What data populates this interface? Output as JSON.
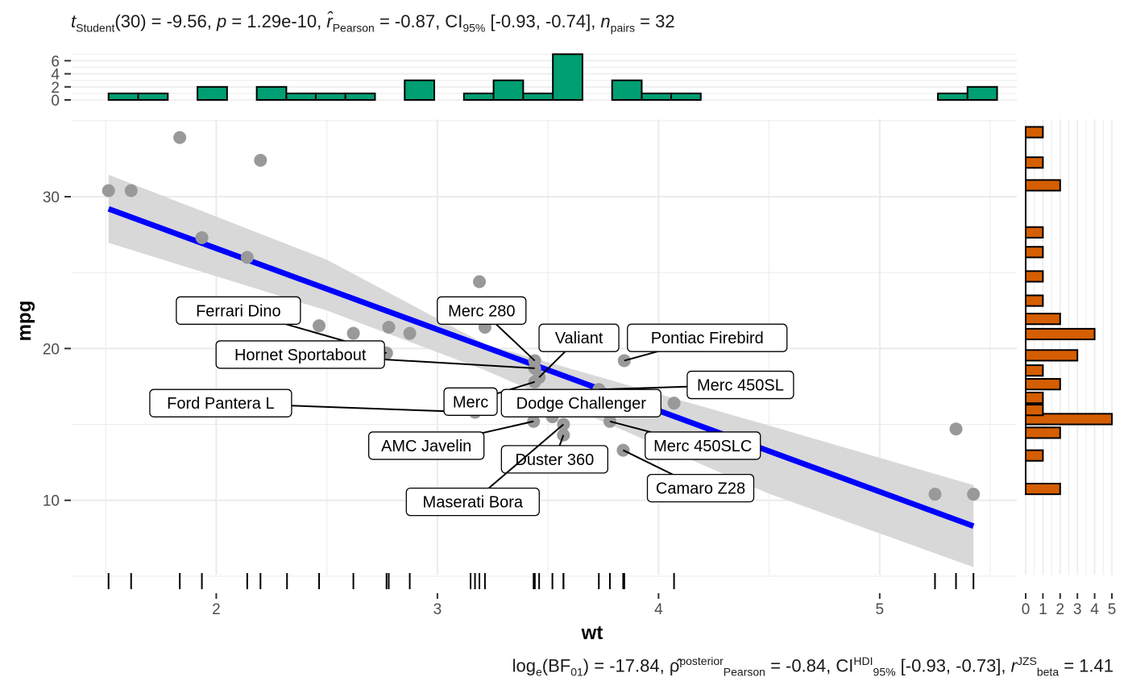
{
  "header_stats": {
    "t_sym": "t",
    "t_sub": "Student",
    "t_val": "(30) = -9.56, ",
    "p_sym": "p",
    "p_val": " = 1.29e-10, ",
    "r_sym": "r̂",
    "r_sub": "Pearson",
    "r_val": " = -0.87, CI",
    "ci_sub": "95%",
    "ci_val": " [-0.93, -0.74], ",
    "n_sym": "n",
    "n_sub": "pairs",
    "n_val": " = 32"
  },
  "footer_stats": {
    "log_text": "log",
    "log_sub": "e",
    "bf_text": "(BF",
    "bf_sub": "01",
    "bf_val": ") = -17.84, ",
    "rho_sym": "ρ̂",
    "rho_sup": "posterior",
    "rho_sub": "Pearson",
    "rho_val": " = -0.84, CI",
    "ci_sup": "HDI",
    "ci_sub": "95%",
    "ci_val": " [-0.93, -0.73], ",
    "rb_sym": "r",
    "rb_sup": "JZS",
    "rb_sub": "beta",
    "rb_val": " = 1.41"
  },
  "colors": {
    "points": "#999999",
    "fit_line": "#0000ff",
    "ci_band": "#d6d6d6",
    "top_hist": "#009e73",
    "right_hist": "#d55e00",
    "grid": "#ebebeb"
  },
  "chart_data": {
    "type": "scatter",
    "xlabel": "wt",
    "ylabel": "mpg",
    "xlim": [
      1.35,
      5.62
    ],
    "ylim": [
      5.1,
      35.1
    ],
    "x_ticks": [
      2,
      3,
      4,
      5
    ],
    "y_ticks": [
      10,
      20,
      30
    ],
    "grid": true,
    "points": [
      {
        "x": 2.62,
        "y": 21.0
      },
      {
        "x": 2.875,
        "y": 21.0
      },
      {
        "x": 2.32,
        "y": 22.8
      },
      {
        "x": 3.215,
        "y": 21.4
      },
      {
        "x": 3.44,
        "y": 18.7
      },
      {
        "x": 3.46,
        "y": 18.1
      },
      {
        "x": 3.57,
        "y": 14.3
      },
      {
        "x": 3.19,
        "y": 24.4
      },
      {
        "x": 3.15,
        "y": 22.8
      },
      {
        "x": 3.44,
        "y": 19.2
      },
      {
        "x": 3.44,
        "y": 17.8
      },
      {
        "x": 4.07,
        "y": 16.4
      },
      {
        "x": 3.73,
        "y": 17.3
      },
      {
        "x": 3.78,
        "y": 15.2
      },
      {
        "x": 5.25,
        "y": 10.4
      },
      {
        "x": 5.424,
        "y": 10.4
      },
      {
        "x": 5.345,
        "y": 14.7
      },
      {
        "x": 2.2,
        "y": 32.4
      },
      {
        "x": 1.615,
        "y": 30.4
      },
      {
        "x": 1.835,
        "y": 33.9
      },
      {
        "x": 2.465,
        "y": 21.5
      },
      {
        "x": 3.52,
        "y": 15.5
      },
      {
        "x": 3.435,
        "y": 15.2
      },
      {
        "x": 3.84,
        "y": 13.3
      },
      {
        "x": 3.845,
        "y": 19.2
      },
      {
        "x": 1.935,
        "y": 27.3
      },
      {
        "x": 2.14,
        "y": 26.0
      },
      {
        "x": 1.513,
        "y": 30.4
      },
      {
        "x": 3.17,
        "y": 15.8
      },
      {
        "x": 2.77,
        "y": 19.7
      },
      {
        "x": 3.57,
        "y": 15.0
      },
      {
        "x": 2.78,
        "y": 21.4
      }
    ],
    "fit": {
      "intercept": 37.285,
      "slope": -5.344,
      "x_range": [
        1.513,
        5.424
      ]
    },
    "ci_band": {
      "x": [
        1.513,
        2.5,
        3.217,
        4.5,
        5.424
      ],
      "lower": [
        26.96,
        22.5,
        18.56,
        10.43,
        5.6
      ],
      "upper": [
        31.45,
        25.85,
        20.28,
        14.92,
        11.0
      ]
    },
    "labels": [
      {
        "text": "Ferrari Dino",
        "x": 2.77,
        "y": 19.7,
        "lx": 2.1,
        "ly": 22.5
      },
      {
        "text": "Merc 280",
        "x": 3.44,
        "y": 19.2,
        "lx": 3.2,
        "ly": 22.5
      },
      {
        "text": "Valiant",
        "x": 3.46,
        "y": 18.1,
        "lx": 3.64,
        "ly": 20.7
      },
      {
        "text": "Pontiac Firebird",
        "x": 3.845,
        "y": 19.2,
        "lx": 4.22,
        "ly": 20.7
      },
      {
        "text": "Hornet Sportabout",
        "x": 3.44,
        "y": 18.7,
        "lx": 2.38,
        "ly": 19.6
      },
      {
        "text": "Merc 450SL",
        "x": 3.73,
        "y": 17.3,
        "lx": 4.37,
        "ly": 17.6
      },
      {
        "text": "Ford Pantera L",
        "x": 3.17,
        "y": 15.8,
        "lx": 2.02,
        "ly": 16.4
      },
      {
        "text": "Merc",
        "x": 3.44,
        "y": 17.8,
        "lx": 3.15,
        "ly": 16.5
      },
      {
        "text": "Dodge Challenger",
        "x": 3.52,
        "y": 15.5,
        "lx": 3.65,
        "ly": 16.4
      },
      {
        "text": "AMC Javelin",
        "x": 3.435,
        "y": 15.2,
        "lx": 2.95,
        "ly": 13.6
      },
      {
        "text": "Merc 450SLC",
        "x": 3.78,
        "y": 15.2,
        "lx": 4.2,
        "ly": 13.6
      },
      {
        "text": "Duster 360",
        "x": 3.57,
        "y": 14.3,
        "lx": 3.53,
        "ly": 12.7
      },
      {
        "text": "Camaro Z28",
        "x": 3.84,
        "y": 13.3,
        "lx": 4.19,
        "ly": 10.8
      },
      {
        "text": "Maserati Bora",
        "x": 3.57,
        "y": 15.0,
        "lx": 3.16,
        "ly": 9.9
      }
    ],
    "marginal_x": {
      "type": "bar",
      "bin_width": 0.1339,
      "bin_lefts": [
        1.513,
        1.647,
        1.781,
        1.915,
        2.049,
        2.183,
        2.317,
        2.45,
        2.584,
        2.718,
        2.852,
        2.986,
        3.12,
        3.254,
        3.388,
        3.522,
        3.656,
        3.79,
        3.924,
        4.057,
        4.191,
        4.325,
        4.459,
        4.593,
        4.727,
        4.861,
        4.995,
        5.129,
        5.263,
        5.397
      ],
      "counts": [
        1,
        1,
        0,
        2,
        0,
        2,
        1,
        1,
        1,
        0,
        3,
        0,
        1,
        3,
        1,
        7,
        0,
        3,
        1,
        1,
        0,
        0,
        0,
        0,
        0,
        0,
        0,
        0,
        1,
        2
      ],
      "y_ticks": [
        0,
        2,
        4,
        6
      ],
      "ylim": [
        0,
        7.4
      ]
    },
    "marginal_y": {
      "type": "bar",
      "bin_lefts": [
        10.4,
        12.6,
        14.1,
        15.0,
        15.6,
        16.4,
        17.3,
        18.2,
        19.2,
        20.6,
        21.6,
        22.8,
        24.4,
        26.0,
        27.3,
        30.4,
        31.9,
        33.9
      ],
      "bin_height": 0.7,
      "counts": [
        2,
        1,
        2,
        5,
        1,
        1,
        2,
        1,
        3,
        4,
        2,
        1,
        1,
        1,
        1,
        2,
        1,
        1
      ],
      "x_ticks": [
        0,
        1,
        2,
        3,
        4,
        5
      ],
      "xlim": [
        0,
        5
      ]
    }
  }
}
